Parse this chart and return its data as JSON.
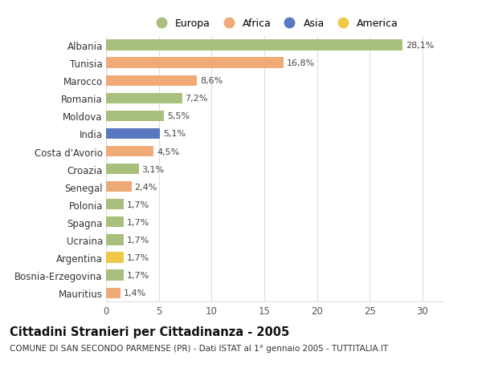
{
  "categories": [
    "Albania",
    "Tunisia",
    "Marocco",
    "Romania",
    "Moldova",
    "India",
    "Costa d'Avorio",
    "Croazia",
    "Senegal",
    "Polonia",
    "Spagna",
    "Ucraina",
    "Argentina",
    "Bosnia-Erzegovina",
    "Mauritius"
  ],
  "values": [
    28.1,
    16.8,
    8.6,
    7.2,
    5.5,
    5.1,
    4.5,
    3.1,
    2.4,
    1.7,
    1.7,
    1.7,
    1.7,
    1.7,
    1.4
  ],
  "labels": [
    "28,1%",
    "16,8%",
    "8,6%",
    "7,2%",
    "5,5%",
    "5,1%",
    "4,5%",
    "3,1%",
    "2,4%",
    "1,7%",
    "1,7%",
    "1,7%",
    "1,7%",
    "1,7%",
    "1,4%"
  ],
  "continents": [
    "Europa",
    "Africa",
    "Africa",
    "Europa",
    "Europa",
    "Asia",
    "Africa",
    "Europa",
    "Africa",
    "Europa",
    "Europa",
    "Europa",
    "America",
    "Europa",
    "Africa"
  ],
  "continent_colors": {
    "Europa": "#a8bf7e",
    "Africa": "#f0aa78",
    "Asia": "#5878c0",
    "America": "#f0c84a"
  },
  "legend_order": [
    "Europa",
    "Africa",
    "Asia",
    "America"
  ],
  "title": "Cittadini Stranieri per Cittadinanza - 2005",
  "subtitle": "COMUNE DI SAN SECONDO PARMENSE (PR) - Dati ISTAT al 1° gennaio 2005 - TUTTITALIA.IT",
  "xlim": [
    0,
    32
  ],
  "xticks": [
    0,
    5,
    10,
    15,
    20,
    25,
    30
  ],
  "background_color": "#ffffff",
  "grid_color": "#dddddd",
  "title_fontsize": 10.5,
  "subtitle_fontsize": 7.5,
  "label_fontsize": 8,
  "ytick_fontsize": 8.5,
  "xtick_fontsize": 8.5,
  "bar_height": 0.6
}
